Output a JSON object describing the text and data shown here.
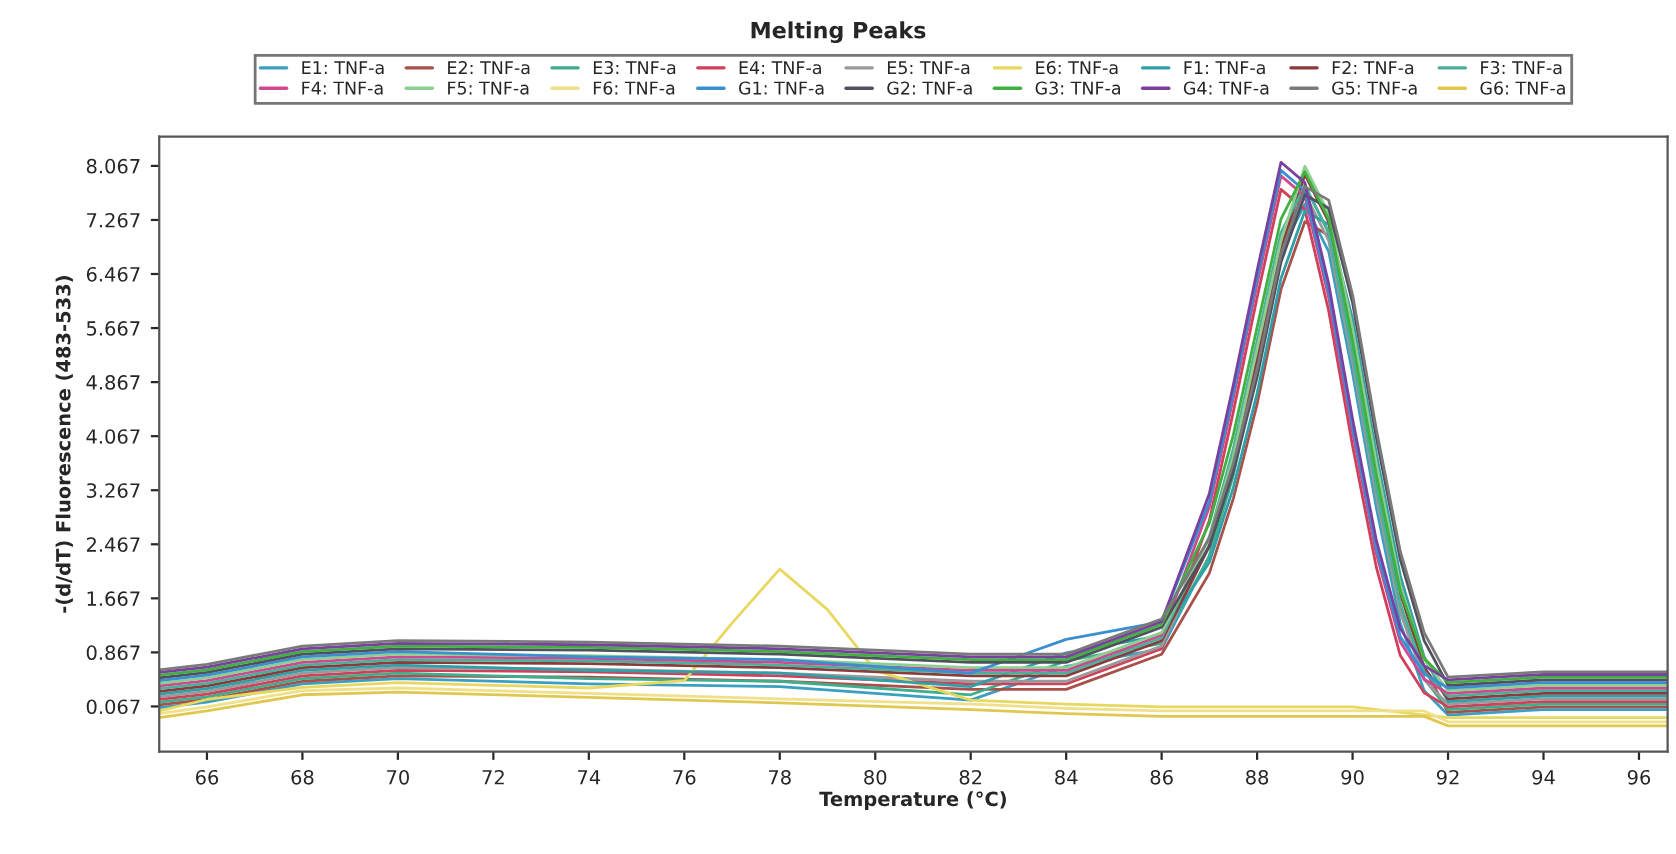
{
  "chart_data": {
    "type": "line",
    "title": "Melting Peaks",
    "xlabel": "Temperature (°C)",
    "ylabel": "-(d/dT) Fluorescence (483-533)",
    "x": [
      65,
      66,
      68,
      70,
      74,
      78,
      82,
      84,
      86,
      87,
      87.5,
      88,
      88.5,
      89,
      89.5,
      90,
      90.5,
      91,
      91.5,
      92,
      94,
      96.6
    ],
    "xlim": [
      65,
      96.6
    ],
    "xticks": [
      66,
      68,
      70,
      72,
      74,
      76,
      78,
      80,
      82,
      84,
      86,
      88,
      90,
      92,
      94,
      96
    ],
    "ylim": [
      -0.6,
      8.5
    ],
    "yticks": [
      0.067,
      0.867,
      1.667,
      2.467,
      3.267,
      4.067,
      4.867,
      5.667,
      6.467,
      7.267,
      8.067
    ],
    "grid": false,
    "legend": "top",
    "marker": "none",
    "line_style": "solid",
    "series": [
      {
        "name": "E1: TNF-a",
        "color": "#3a9fc0",
        "values": [
          0.05,
          0.13,
          0.4,
          0.48,
          0.4,
          0.36,
          0.16,
          0.66,
          0.92,
          2.3,
          3.6,
          5.2,
          6.8,
          7.5,
          6.8,
          5.0,
          3.0,
          1.3,
          0.3,
          -0.06,
          0.02,
          0.02
        ]
      },
      {
        "name": "E2: TNF-a",
        "color": "#a8504a",
        "values": [
          0.09,
          0.17,
          0.44,
          0.52,
          0.5,
          0.44,
          0.32,
          0.32,
          0.84,
          2.04,
          3.14,
          4.54,
          6.24,
          7.24,
          7.04,
          5.64,
          3.64,
          1.84,
          0.64,
          -0.02,
          0.06,
          0.06
        ]
      },
      {
        "name": "E3: TNF-a",
        "color": "#3fae8c",
        "values": [
          0.13,
          0.21,
          0.48,
          0.56,
          0.48,
          0.44,
          0.24,
          0.74,
          1.0,
          2.28,
          3.48,
          5.08,
          6.68,
          7.78,
          7.08,
          5.38,
          3.38,
          1.58,
          0.48,
          0.02,
          0.1,
          0.1
        ]
      },
      {
        "name": "E4: TNF-a",
        "color": "#d0405a",
        "values": [
          0.17,
          0.25,
          0.52,
          0.6,
          0.58,
          0.52,
          0.4,
          0.4,
          0.92,
          2.82,
          4.42,
          6.12,
          7.72,
          7.42,
          5.92,
          3.92,
          2.12,
          0.82,
          0.27,
          0.06,
          0.14,
          0.14
        ]
      },
      {
        "name": "E5: TNF-a",
        "color": "#9a9a9a",
        "values": [
          0.21,
          0.29,
          0.56,
          0.64,
          0.62,
          0.56,
          0.44,
          0.44,
          0.96,
          2.46,
          3.76,
          5.36,
          6.96,
          7.66,
          6.96,
          5.16,
          3.16,
          1.46,
          0.46,
          0.1,
          0.18,
          0.18
        ]
      },
      {
        "name": "E6: TNF-a",
        "color": "#e8d860",
        "x": [
          65,
          66,
          68,
          70,
          74,
          76,
          77,
          78,
          79,
          80,
          82,
          84,
          86,
          90,
          92,
          94,
          96.6
        ],
        "values": [
          0.0,
          0.17,
          0.35,
          0.42,
          0.34,
          0.45,
          1.3,
          2.1,
          1.5,
          0.6,
          0.16,
          0.1,
          0.06,
          0.06,
          -0.1,
          -0.1,
          -0.1
        ]
      },
      {
        "name": "F1: TNF-a",
        "color": "#2fa0a8",
        "values": [
          0.25,
          0.33,
          0.6,
          0.68,
          0.6,
          0.56,
          0.36,
          0.86,
          1.12,
          2.2,
          3.3,
          4.7,
          6.4,
          7.4,
          7.2,
          5.8,
          3.8,
          2.0,
          0.8,
          0.14,
          0.22,
          0.22
        ]
      },
      {
        "name": "F2: TNF-a",
        "color": "#8c3a3a",
        "values": [
          0.29,
          0.37,
          0.64,
          0.72,
          0.7,
          0.64,
          0.52,
          0.52,
          1.04,
          2.44,
          3.64,
          5.24,
          6.84,
          7.94,
          7.24,
          5.54,
          3.54,
          1.74,
          0.64,
          0.18,
          0.26,
          0.26
        ]
      },
      {
        "name": "F3: TNF-a",
        "color": "#4ab09a",
        "values": [
          0.33,
          0.41,
          0.68,
          0.76,
          0.74,
          0.68,
          0.56,
          0.56,
          1.08,
          2.58,
          3.88,
          5.48,
          7.08,
          7.78,
          7.08,
          5.28,
          3.28,
          1.58,
          0.58,
          0.22,
          0.3,
          0.3
        ]
      },
      {
        "name": "F4: TNF-a",
        "color": "#d04890",
        "values": [
          0.37,
          0.45,
          0.72,
          0.8,
          0.78,
          0.72,
          0.6,
          0.6,
          1.12,
          3.02,
          4.62,
          6.32,
          7.92,
          7.62,
          6.12,
          4.12,
          2.32,
          1.02,
          0.47,
          0.26,
          0.34,
          0.34
        ]
      },
      {
        "name": "F5: TNF-a",
        "color": "#8ccf90",
        "values": [
          0.41,
          0.49,
          0.76,
          0.84,
          0.82,
          0.76,
          0.64,
          0.64,
          1.16,
          2.56,
          3.76,
          5.36,
          6.96,
          8.06,
          7.36,
          5.66,
          3.66,
          1.86,
          0.76,
          0.3,
          0.38,
          0.38
        ]
      },
      {
        "name": "F6: TNF-a",
        "color": "#f0e08a",
        "values": [
          -0.04,
          0.06,
          0.3,
          0.34,
          0.26,
          0.18,
          0.1,
          0.04,
          0.0,
          0.0,
          0.0,
          0.0,
          0.0,
          0.0,
          0.0,
          0.0,
          0.0,
          0.0,
          0.0,
          -0.16,
          -0.16,
          -0.16
        ]
      },
      {
        "name": "G1: TNF-a",
        "color": "#3a8fd0",
        "values": [
          0.45,
          0.53,
          0.8,
          0.88,
          0.8,
          0.76,
          0.56,
          1.06,
          1.32,
          3.1,
          4.7,
          6.4,
          8.0,
          7.7,
          6.2,
          4.2,
          2.4,
          1.1,
          0.55,
          0.34,
          0.42,
          0.42
        ]
      },
      {
        "name": "G2: TNF-a",
        "color": "#505060",
        "values": [
          0.49,
          0.57,
          0.84,
          0.92,
          0.9,
          0.84,
          0.72,
          0.72,
          1.24,
          2.44,
          3.54,
          4.94,
          6.64,
          7.64,
          7.44,
          6.04,
          4.04,
          2.24,
          1.04,
          0.38,
          0.46,
          0.46
        ]
      },
      {
        "name": "G3: TNF-a",
        "color": "#40b040",
        "values": [
          0.53,
          0.61,
          0.88,
          0.96,
          0.94,
          0.88,
          0.76,
          0.76,
          1.28,
          2.78,
          4.08,
          5.68,
          7.28,
          7.98,
          7.28,
          5.48,
          3.48,
          1.78,
          0.78,
          0.42,
          0.5,
          0.5
        ]
      },
      {
        "name": "G4: TNF-a",
        "color": "#7a40a0",
        "values": [
          0.57,
          0.65,
          0.92,
          1.0,
          0.98,
          0.92,
          0.8,
          0.8,
          1.32,
          3.22,
          4.82,
          6.52,
          8.12,
          7.82,
          6.32,
          4.32,
          2.52,
          1.22,
          0.67,
          0.46,
          0.54,
          0.54
        ]
      },
      {
        "name": "G5: TNF-a",
        "color": "#7a7a7a",
        "values": [
          0.61,
          0.69,
          0.96,
          1.04,
          1.02,
          0.96,
          0.84,
          0.84,
          1.36,
          2.56,
          3.66,
          5.06,
          6.76,
          7.76,
          7.56,
          6.16,
          4.16,
          2.36,
          1.16,
          0.5,
          0.58,
          0.58
        ]
      },
      {
        "name": "G6: TNF-a",
        "color": "#e0c850",
        "values": [
          -0.1,
          0.0,
          0.24,
          0.28,
          0.2,
          0.12,
          0.02,
          -0.04,
          -0.08,
          -0.08,
          -0.08,
          -0.08,
          -0.08,
          -0.08,
          -0.08,
          -0.08,
          -0.08,
          -0.08,
          -0.08,
          -0.22,
          -0.22,
          -0.22
        ]
      }
    ]
  }
}
